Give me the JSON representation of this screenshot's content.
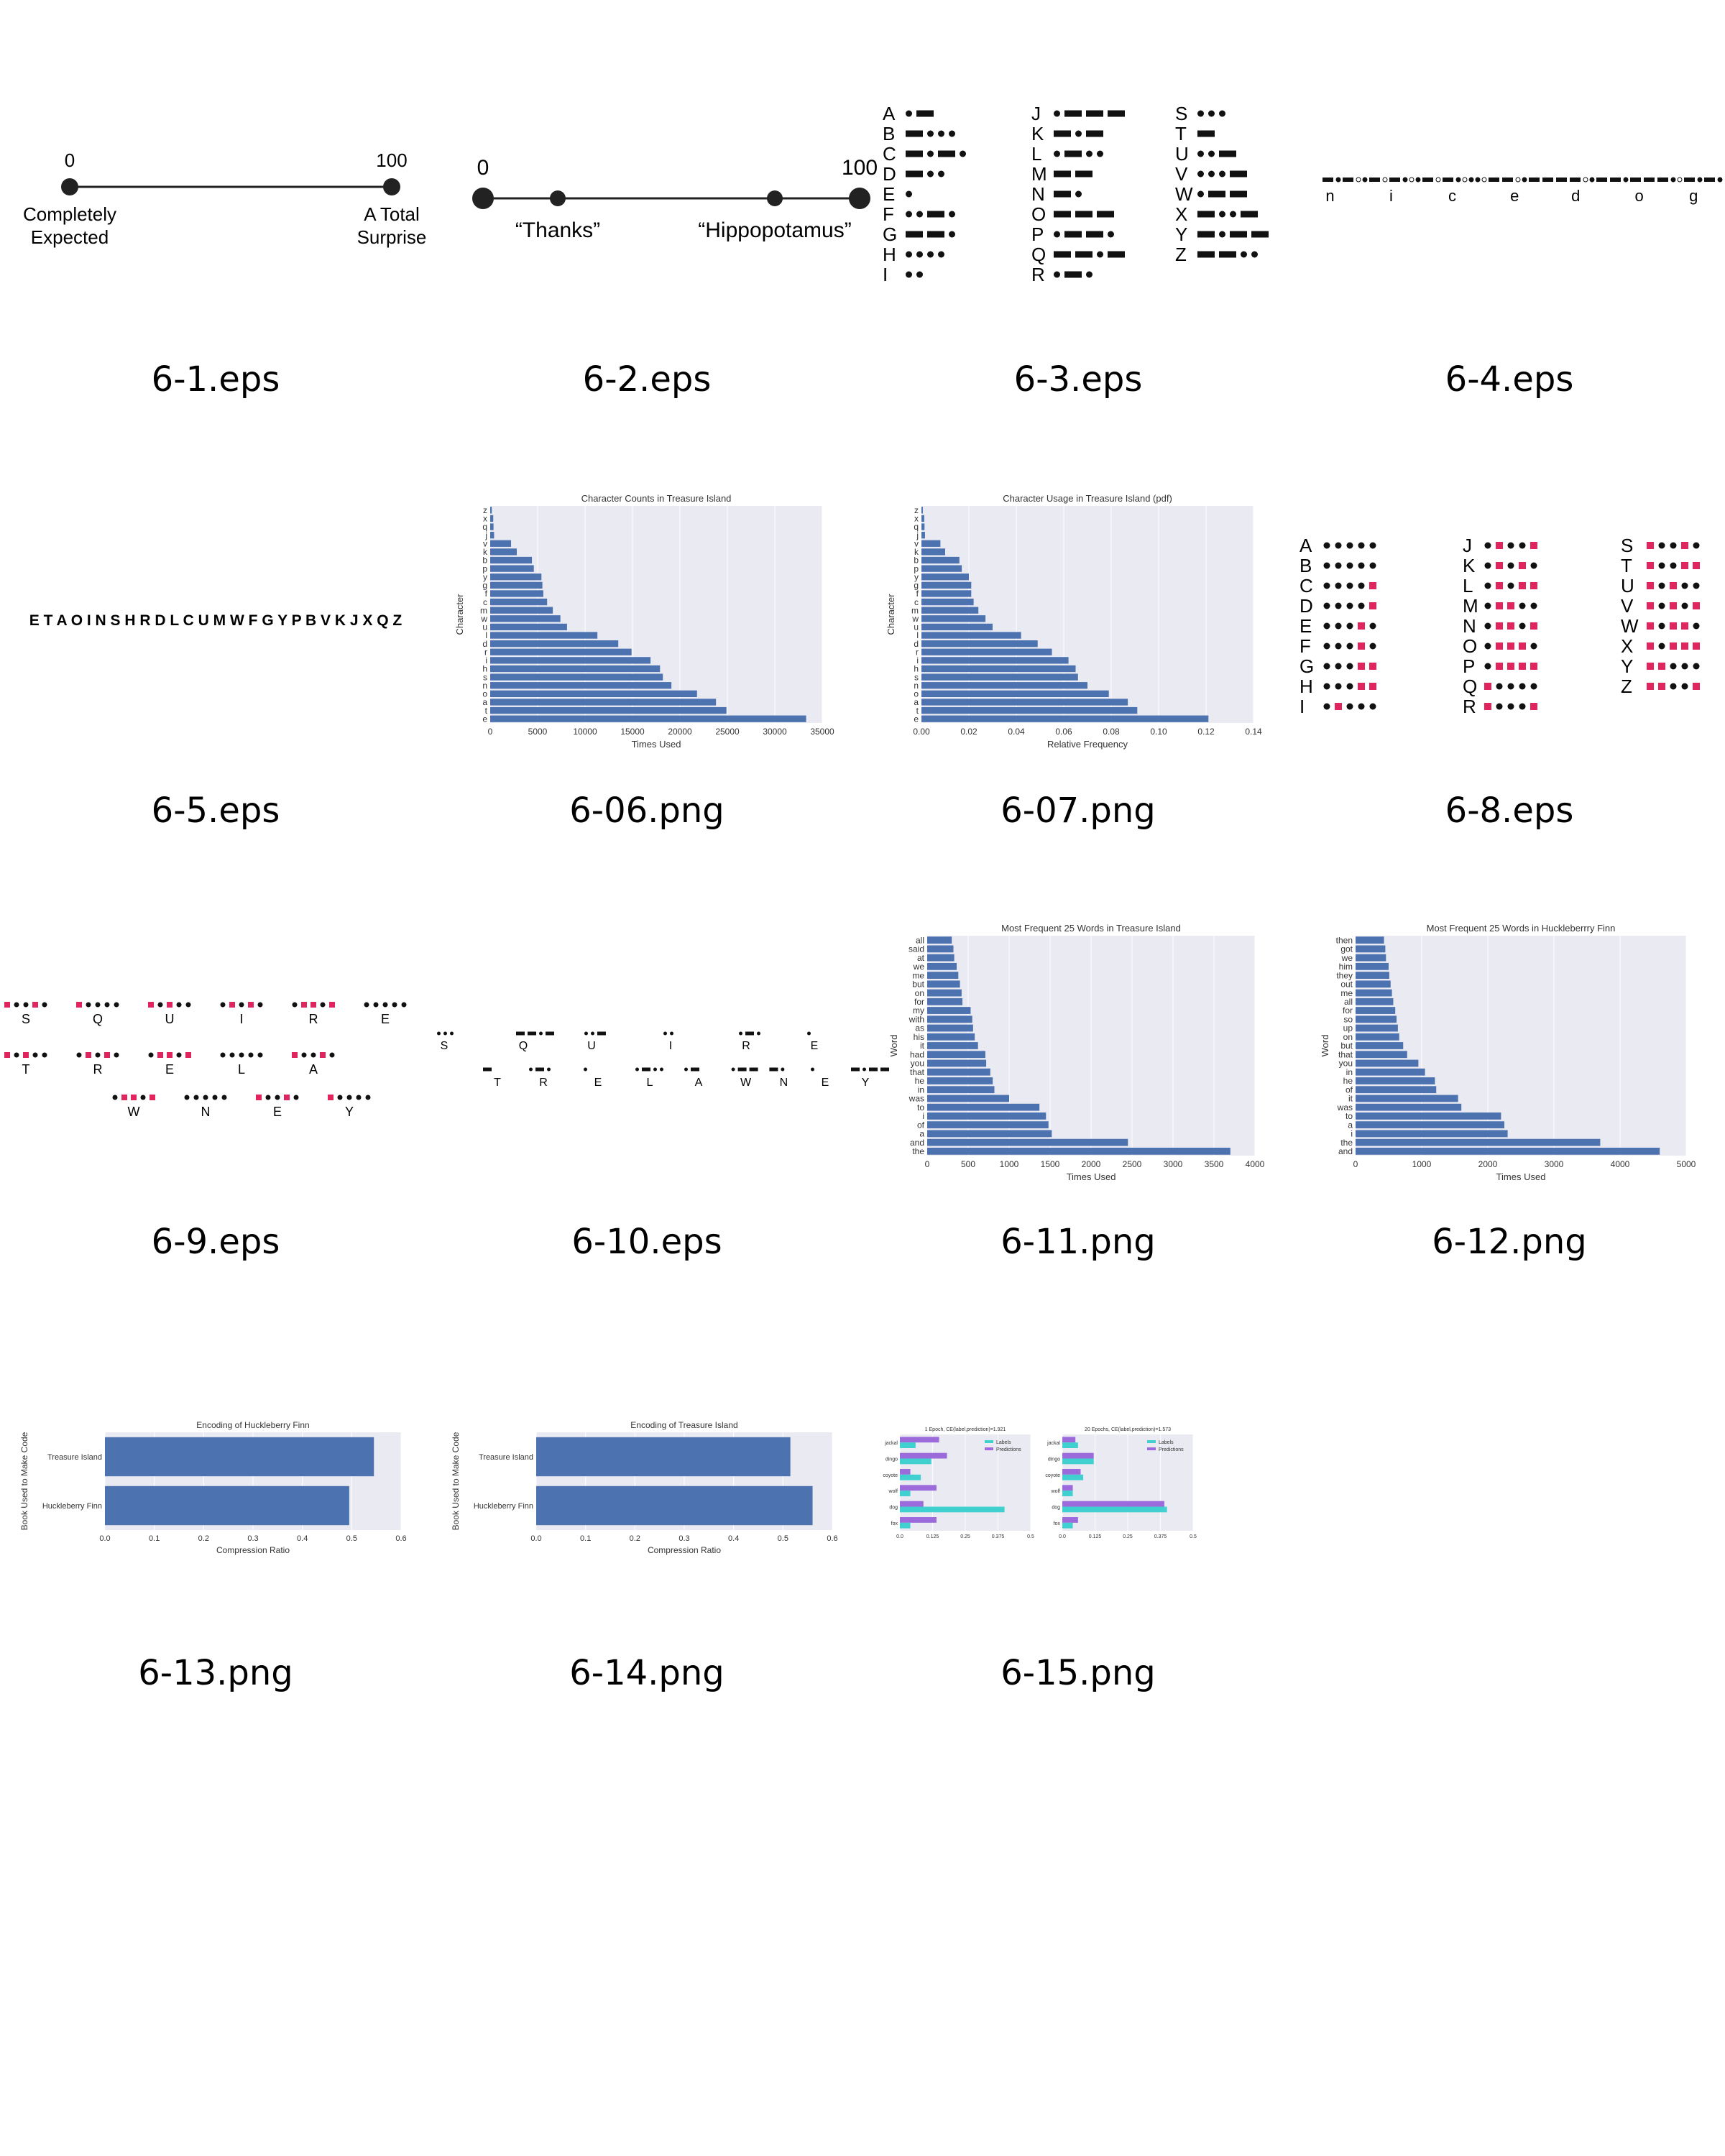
{
  "captions": [
    "6-1.eps",
    "6-2.eps",
    "6-3.eps",
    "6-4.eps",
    "6-5.eps",
    "6-06.png",
    "6-07.png",
    "6-8.eps",
    "6-9.eps",
    "6-10.eps",
    "6-11.png",
    "6-12.png",
    "6-13.png",
    "6-14.png",
    "6-15.png"
  ],
  "fig1": {
    "left_value": "0",
    "right_value": "100",
    "left_label": [
      "Completely",
      "Expected"
    ],
    "right_label": [
      "A Total",
      "Surprise"
    ]
  },
  "fig2": {
    "left_value": "0",
    "right_value": "100",
    "left_label": "“Thanks”",
    "right_label": "“Hippopotamus”"
  },
  "morse": [
    {
      "letter": "A",
      "code": ".-"
    },
    {
      "letter": "B",
      "code": "-..."
    },
    {
      "letter": "C",
      "code": "-.-."
    },
    {
      "letter": "D",
      "code": "-.."
    },
    {
      "letter": "E",
      "code": "."
    },
    {
      "letter": "F",
      "code": "..-."
    },
    {
      "letter": "G",
      "code": "--."
    },
    {
      "letter": "H",
      "code": "...."
    },
    {
      "letter": "I",
      "code": ".."
    },
    {
      "letter": "J",
      "code": ".---"
    },
    {
      "letter": "K",
      "code": "-.-"
    },
    {
      "letter": "L",
      "code": ".-.."
    },
    {
      "letter": "M",
      "code": "--"
    },
    {
      "letter": "N",
      "code": "-."
    },
    {
      "letter": "O",
      "code": "---"
    },
    {
      "letter": "P",
      "code": ".--."
    },
    {
      "letter": "Q",
      "code": "--.-"
    },
    {
      "letter": "R",
      "code": ".-."
    },
    {
      "letter": "S",
      "code": "..."
    },
    {
      "letter": "T",
      "code": "-"
    },
    {
      "letter": "U",
      "code": "..-"
    },
    {
      "letter": "V",
      "code": "...-"
    },
    {
      "letter": "W",
      "code": ".--"
    },
    {
      "letter": "X",
      "code": "-..-"
    },
    {
      "letter": "Y",
      "code": "-.--"
    },
    {
      "letter": "Z",
      "code": "--.."
    }
  ],
  "fig4_letters": [
    "n",
    "i",
    "c",
    "e",
    "d",
    "o",
    "g"
  ],
  "fig5_text": "E T A O I N S H R D L C U M W F G Y P B V K J X Q Z",
  "fig8_grid": [
    {
      "letter": "A",
      "marks": [
        0,
        0,
        0,
        0,
        0,
        0
      ]
    },
    {
      "letter": "B",
      "marks": [
        0,
        0,
        0,
        0,
        0,
        1
      ]
    },
    {
      "letter": "C",
      "marks": [
        0,
        0,
        0,
        0,
        1,
        0
      ]
    },
    {
      "letter": "D",
      "marks": [
        0,
        0,
        0,
        0,
        1,
        1
      ]
    },
    {
      "letter": "E",
      "marks": [
        0,
        0,
        0,
        1,
        0,
        0
      ]
    },
    {
      "letter": "F",
      "marks": [
        0,
        0,
        0,
        1,
        0,
        1
      ]
    },
    {
      "letter": "G",
      "marks": [
        0,
        0,
        0,
        1,
        1,
        0
      ]
    },
    {
      "letter": "H",
      "marks": [
        0,
        0,
        0,
        1,
        1,
        1
      ]
    },
    {
      "letter": "I",
      "marks": [
        0,
        1,
        0,
        0,
        0
      ]
    },
    {
      "letter": "J",
      "marks": [
        0,
        1,
        0,
        0,
        1
      ]
    },
    {
      "letter": "K",
      "marks": [
        0,
        1,
        0,
        1,
        0
      ]
    },
    {
      "letter": "L",
      "marks": [
        0,
        1,
        0,
        1,
        1
      ]
    },
    {
      "letter": "M",
      "marks": [
        0,
        1,
        1,
        0,
        0
      ]
    },
    {
      "letter": "N",
      "marks": [
        0,
        1,
        1,
        0,
        1
      ]
    },
    {
      "letter": "O",
      "marks": [
        0,
        1,
        1,
        1,
        0
      ]
    },
    {
      "letter": "P",
      "marks": [
        0,
        1,
        1,
        1,
        1
      ]
    },
    {
      "letter": "Q",
      "marks": [
        1,
        0,
        0,
        0,
        0
      ]
    },
    {
      "letter": "R",
      "marks": [
        1,
        0,
        0,
        0,
        1
      ]
    },
    {
      "letter": "S",
      "marks": [
        1,
        0,
        0,
        1,
        0
      ]
    },
    {
      "letter": "T",
      "marks": [
        1,
        0,
        0,
        1,
        1
      ]
    },
    {
      "letter": "U",
      "marks": [
        1,
        0,
        1,
        0,
        0
      ]
    },
    {
      "letter": "V",
      "marks": [
        1,
        0,
        1,
        0,
        1
      ]
    },
    {
      "letter": "W",
      "marks": [
        1,
        0,
        1,
        1,
        0
      ]
    },
    {
      "letter": "X",
      "marks": [
        1,
        0,
        1,
        1,
        1
      ]
    },
    {
      "letter": "Y",
      "marks": [
        1,
        1,
        0,
        0,
        0
      ]
    },
    {
      "letter": "Z",
      "marks": [
        1,
        1,
        0,
        0,
        1
      ]
    }
  ],
  "fig9_rows": [
    [
      "S",
      "Q",
      "U",
      "I",
      "R",
      "E"
    ],
    [
      "T",
      "R",
      "E",
      "L",
      "A"
    ],
    [
      "W",
      "N",
      "E",
      "Y"
    ]
  ],
  "fig10_rows": [
    [
      "S",
      "Q",
      "U",
      "I",
      "R",
      "E"
    ],
    [
      "T",
      "R",
      "E",
      "L",
      "A",
      "W",
      "N",
      "E",
      "Y"
    ]
  ],
  "colors": {
    "bar": "#4c72b0",
    "bg": "#eaeaf2",
    "accent": "#e0245e",
    "cyan": "#40d0d0",
    "purple": "#9b6bdb"
  },
  "chart_data": [
    {
      "id": "6-06",
      "type": "bar",
      "orientation": "horizontal",
      "title": "Character Counts in Treasure Island",
      "xlabel": "Times Used",
      "ylabel": "Character",
      "categories": [
        "e",
        "t",
        "a",
        "o",
        "n",
        "s",
        "h",
        "i",
        "r",
        "d",
        "l",
        "u",
        "w",
        "m",
        "c",
        "f",
        "g",
        "y",
        "p",
        "b",
        "k",
        "v",
        "j",
        "q",
        "x",
        "z"
      ],
      "values": [
        33300,
        24900,
        23800,
        21800,
        19100,
        18200,
        17900,
        16900,
        14900,
        13500,
        11300,
        8100,
        7400,
        6600,
        6000,
        5600,
        5500,
        5400,
        4600,
        4400,
        2800,
        2200,
        410,
        350,
        320,
        170
      ],
      "xlim": [
        0,
        35000
      ],
      "xticks": [
        "0",
        "5000",
        "10000",
        "15000",
        "20000",
        "25000",
        "30000",
        "35000"
      ]
    },
    {
      "id": "6-07",
      "type": "bar",
      "orientation": "horizontal",
      "title": "Character Usage in Treasure Island (pdf)",
      "xlabel": "Relative Frequency",
      "ylabel": "Character",
      "categories": [
        "e",
        "t",
        "a",
        "o",
        "n",
        "s",
        "h",
        "i",
        "r",
        "d",
        "l",
        "u",
        "w",
        "m",
        "c",
        "f",
        "g",
        "y",
        "p",
        "b",
        "k",
        "v",
        "j",
        "q",
        "x",
        "z"
      ],
      "values": [
        0.121,
        0.091,
        0.087,
        0.079,
        0.07,
        0.066,
        0.065,
        0.062,
        0.055,
        0.049,
        0.042,
        0.03,
        0.027,
        0.024,
        0.022,
        0.021,
        0.021,
        0.02,
        0.017,
        0.016,
        0.01,
        0.008,
        0.0015,
        0.0013,
        0.0012,
        0.0006
      ],
      "xlim": [
        0,
        0.14
      ],
      "xticks": [
        "0.00",
        "0.02",
        "0.04",
        "0.06",
        "0.08",
        "0.10",
        "0.12",
        "0.14"
      ]
    },
    {
      "id": "6-11",
      "type": "bar",
      "orientation": "horizontal",
      "title": "Most Frequent 25 Words in Treasure Island",
      "xlabel": "Times Used",
      "ylabel": "Word",
      "categories": [
        "the",
        "and",
        "a",
        "of",
        "i",
        "to",
        "was",
        "in",
        "he",
        "that",
        "you",
        "had",
        "it",
        "his",
        "as",
        "with",
        "my",
        "for",
        "on",
        "but",
        "me",
        "we",
        "at",
        "said",
        "all"
      ],
      "values": [
        3700,
        2450,
        1520,
        1480,
        1450,
        1370,
        1000,
        820,
        800,
        770,
        720,
        710,
        620,
        580,
        560,
        550,
        530,
        430,
        420,
        400,
        380,
        360,
        330,
        320,
        300
      ],
      "xlim": [
        0,
        4000
      ],
      "xticks": [
        "0",
        "500",
        "1000",
        "1500",
        "2000",
        "2500",
        "3000",
        "3500",
        "4000"
      ]
    },
    {
      "id": "6-12",
      "type": "bar",
      "orientation": "horizontal",
      "title": "Most Frequent 25 Words in Huckleberrry Finn",
      "xlabel": "Times Used",
      "ylabel": "Word",
      "categories": [
        "and",
        "the",
        "i",
        "a",
        "to",
        "was",
        "it",
        "of",
        "he",
        "in",
        "you",
        "that",
        "but",
        "on",
        "up",
        "so",
        "for",
        "all",
        "me",
        "out",
        "they",
        "him",
        "we",
        "got",
        "then"
      ],
      "values": [
        4600,
        3700,
        2300,
        2250,
        2200,
        1600,
        1550,
        1220,
        1200,
        1050,
        950,
        780,
        720,
        660,
        640,
        620,
        600,
        570,
        550,
        530,
        510,
        500,
        460,
        450,
        430
      ],
      "xlim": [
        0,
        5000
      ],
      "xticks": [
        "0",
        "1000",
        "2000",
        "3000",
        "4000",
        "5000"
      ]
    },
    {
      "id": "6-13",
      "type": "bar",
      "orientation": "horizontal",
      "title": "Encoding of Huckleberry Finn",
      "xlabel": "Compression Ratio",
      "ylabel": "Book Used to Make Code",
      "categories": [
        "Huckleberry Finn",
        "Treasure Island"
      ],
      "values": [
        0.495,
        0.545
      ],
      "xlim": [
        0,
        0.6
      ],
      "xticks": [
        "0.0",
        "0.1",
        "0.2",
        "0.3",
        "0.4",
        "0.5",
        "0.6"
      ]
    },
    {
      "id": "6-14",
      "type": "bar",
      "orientation": "horizontal",
      "title": "Encoding of Treasure Island",
      "xlabel": "Compression Ratio",
      "ylabel": "Book Used to Make Code",
      "categories": [
        "Huckleberry Finn",
        "Treasure Island"
      ],
      "values": [
        0.56,
        0.515
      ],
      "xlim": [
        0,
        0.6
      ],
      "xticks": [
        "0.0",
        "0.1",
        "0.2",
        "0.3",
        "0.4",
        "0.5",
        "0.6"
      ]
    },
    {
      "id": "6-15a",
      "type": "bar",
      "orientation": "horizontal",
      "title": "1 Epoch, CE(label,prediction)=1.921",
      "legend": [
        "Labels",
        "Predictions"
      ],
      "categories": [
        "jackal",
        "dingo",
        "coyote",
        "wolf",
        "dog",
        "fox"
      ],
      "series": [
        {
          "name": "Labels",
          "values": [
            0.06,
            0.12,
            0.08,
            0.04,
            0.4,
            0.04
          ]
        },
        {
          "name": "Predictions",
          "values": [
            0.15,
            0.18,
            0.04,
            0.14,
            0.09,
            0.14
          ]
        }
      ],
      "xlim": [
        0,
        0.5
      ],
      "xticks": [
        "0.0",
        "0.125",
        "0.25",
        "0.375",
        "0.5"
      ]
    },
    {
      "id": "6-15b",
      "type": "bar",
      "orientation": "horizontal",
      "title": "20 Epochs, CE(label,prediction)=1.573",
      "legend": [
        "Labels",
        "Predictions"
      ],
      "categories": [
        "jackal",
        "dingo",
        "coyote",
        "wolf",
        "dog",
        "fox"
      ],
      "series": [
        {
          "name": "Labels",
          "values": [
            0.06,
            0.12,
            0.08,
            0.04,
            0.4,
            0.04
          ]
        },
        {
          "name": "Predictions",
          "values": [
            0.05,
            0.12,
            0.07,
            0.04,
            0.39,
            0.06
          ]
        }
      ],
      "xlim": [
        0,
        0.5
      ],
      "xticks": [
        "0.0",
        "0.125",
        "0.25",
        "0.375",
        "0.5"
      ]
    }
  ]
}
